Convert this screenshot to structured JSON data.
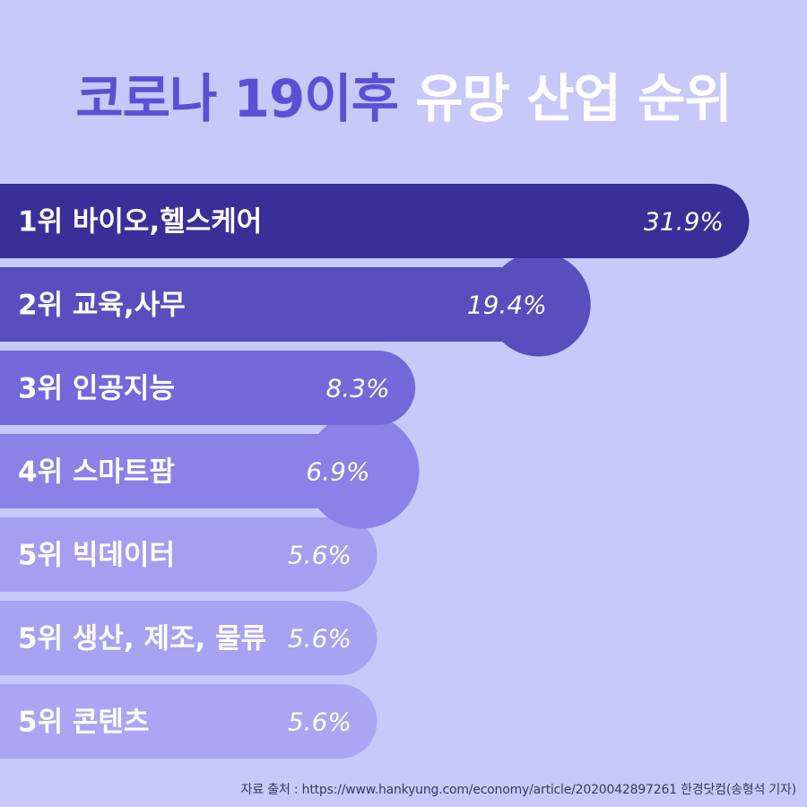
{
  "title": {
    "part1": "코로나 19이후",
    "part2": "유망 산업 순위"
  },
  "chart_data": {
    "type": "bar",
    "orientation": "horizontal",
    "categories": [
      "1위 바이오,헬스케어",
      "2위 교육,사무",
      "3위 인공지능",
      "4위 스마트팜",
      "5위 빅데이터",
      "5위 생산, 제조, 물류",
      "5위 콘텐츠"
    ],
    "values": [
      31.9,
      19.4,
      8.3,
      6.9,
      5.6,
      5.6,
      5.6
    ],
    "value_labels": [
      "31.9%",
      "19.4%",
      "8.3%",
      "6.9%",
      "5.6%",
      "5.6%",
      "5.6%"
    ],
    "colors": [
      "#3a2f99",
      "#5a4ebe",
      "#7468db",
      "#8b81e6",
      "#a59ef1",
      "#a8a2f3",
      "#aba5f4"
    ]
  },
  "source": "자료 출처 : https://www.hankyung.com/economy/article/2020042897261 한경닷컴(송형석 기자)"
}
